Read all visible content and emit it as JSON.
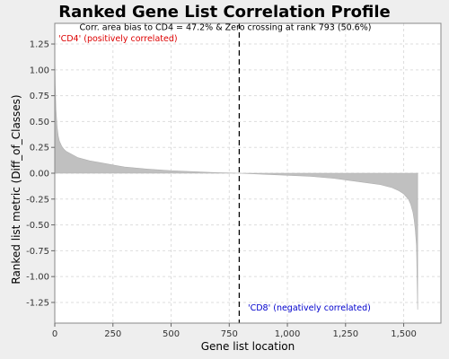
{
  "chart_data": {
    "type": "area",
    "title": "Ranked Gene List Correlation Profile",
    "xlabel": "Gene list location",
    "ylabel": "Ranked list metric (Diff_of_Classes)",
    "xlim": [
      0,
      1660
    ],
    "ylim": [
      -1.45,
      1.45
    ],
    "x_ticks": [
      0,
      250,
      500,
      750,
      1000,
      1250,
      1500
    ],
    "x_tick_labels": [
      "0",
      "250",
      "500",
      "750",
      "1,000",
      "1,250",
      "1,500"
    ],
    "y_ticks": [
      1.25,
      1.0,
      0.75,
      0.5,
      0.25,
      0.0,
      -0.25,
      -0.5,
      -0.75,
      -1.0,
      -1.25
    ],
    "y_tick_labels": [
      "1.25",
      "1.00",
      "0.75",
      "0.50",
      "0.25",
      "0.00",
      "-0.25",
      "-0.50",
      "-0.75",
      "-1.00",
      "-1.25"
    ],
    "grid": true,
    "series": [
      {
        "x": [
          0,
          2,
          5,
          10,
          15,
          20,
          30,
          40,
          50,
          75,
          100,
          150,
          200,
          250,
          300,
          400,
          500,
          600,
          700,
          793,
          900,
          1000,
          1100,
          1200,
          1300,
          1400,
          1450,
          1480,
          1500,
          1520,
          1530,
          1540,
          1545,
          1550,
          1555,
          1560
        ],
        "y": [
          1.2,
          0.85,
          0.62,
          0.45,
          0.36,
          0.31,
          0.26,
          0.23,
          0.21,
          0.18,
          0.15,
          0.12,
          0.1,
          0.08,
          0.06,
          0.04,
          0.025,
          0.015,
          0.005,
          0.0,
          -0.01,
          -0.02,
          -0.03,
          -0.05,
          -0.08,
          -0.11,
          -0.14,
          -0.17,
          -0.2,
          -0.25,
          -0.3,
          -0.38,
          -0.45,
          -0.55,
          -0.7,
          -1.32
        ]
      }
    ],
    "zero_crossing_rank": 793,
    "annotations": {
      "top_note": "Corr. area bias to CD4 = 47.2% & Zero crossing at rank 793 (50.6%)",
      "positive_label": "'CD4' (positively correlated)",
      "negative_label": "'CD8' (negatively correlated)"
    },
    "colors": {
      "fill": "#c0c0c0",
      "plot_background": "#ffffff",
      "grid": "#dddddd",
      "positive_label": "#dd0000",
      "negative_label": "#0000cc",
      "zero_line": "#000000"
    }
  }
}
